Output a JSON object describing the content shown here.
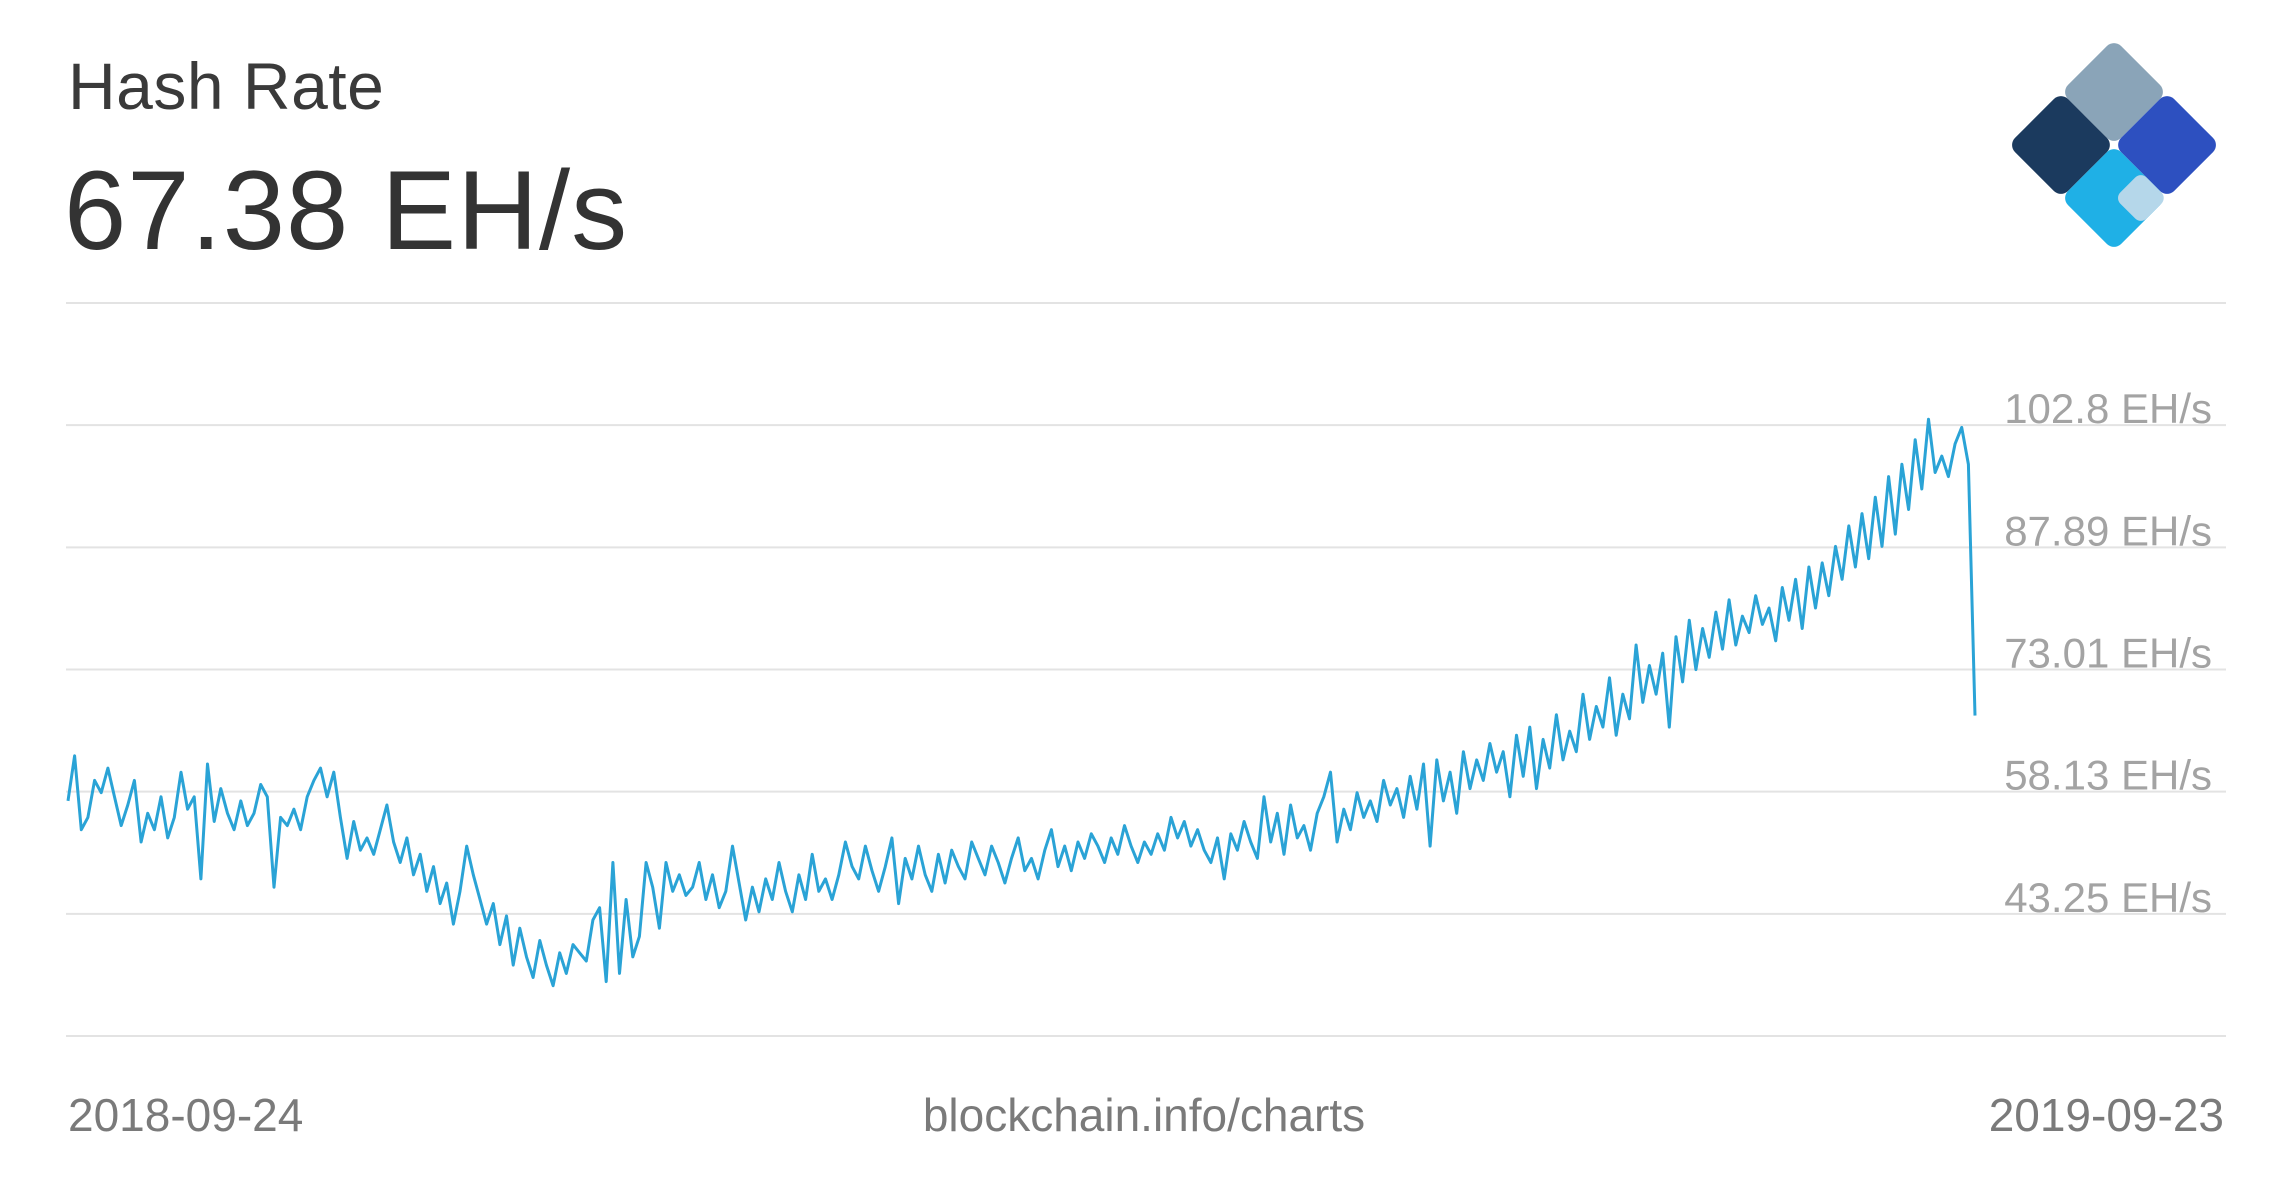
{
  "header": {
    "title": "Hash Rate",
    "current_value": "67.38 EH/s"
  },
  "footer": {
    "start_date": "2018-09-24",
    "source": "blockchain.info/charts",
    "end_date": "2019-09-23"
  },
  "logo": {
    "icon": "blockchain-diamond-icon",
    "colors": [
      "#8aa4b8",
      "#1b3a5e",
      "#2d50c0",
      "#b5d7ea",
      "#1fb0e6"
    ]
  },
  "colors": {
    "line": "#2aa3d6",
    "grid": "#e3e3e3",
    "label": "#a3a3a3"
  },
  "chart_data": {
    "type": "line",
    "title": "Hash Rate",
    "x_range": [
      "2018-09-24",
      "2019-09-23"
    ],
    "y_tick_labels": [
      "102.8 EH/s",
      "87.89 EH/s",
      "73.01 EH/s",
      "58.13 EH/s",
      "43.25 EH/s"
    ],
    "y_ticks": [
      102.77,
      87.89,
      73.01,
      58.13,
      43.25
    ],
    "ylim": [
      28.37,
      117.65
    ],
    "grid": true,
    "series": [
      {
        "values": [
          57.0,
          62.5,
          53.5,
          55.0,
          59.5,
          58.0,
          61.0,
          57.5,
          54.0,
          56.5,
          59.5,
          52.0,
          55.5,
          53.5,
          57.5,
          52.5,
          55.0,
          60.5,
          56.0,
          57.5,
          47.5,
          61.5,
          54.5,
          58.5,
          55.5,
          53.5,
          57.0,
          54.0,
          55.5,
          59.0,
          57.5,
          46.5,
          55.0,
          54.0,
          56.0,
          53.5,
          57.5,
          59.5,
          61.0,
          57.5,
          60.5,
          55.0,
          50.0,
          54.5,
          51.0,
          52.5,
          50.5,
          53.5,
          56.5,
          52.0,
          49.5,
          52.5,
          48.0,
          50.5,
          46.0,
          49.0,
          44.5,
          47.0,
          42.0,
          46.0,
          51.5,
          48.0,
          45.0,
          42.0,
          44.5,
          39.5,
          43.0,
          37.0,
          41.5,
          38.0,
          35.5,
          40.0,
          37.0,
          34.5,
          38.5,
          36.0,
          39.5,
          38.5,
          37.5,
          42.5,
          44.0,
          35.0,
          49.5,
          36.0,
          45.0,
          38.0,
          40.5,
          49.5,
          46.5,
          41.5,
          49.5,
          46.0,
          48.0,
          45.5,
          46.5,
          49.5,
          45.0,
          48.0,
          44.0,
          46.0,
          51.5,
          47.0,
          42.5,
          46.5,
          43.5,
          47.5,
          45.0,
          49.5,
          46.0,
          43.5,
          48.0,
          45.0,
          50.5,
          46.0,
          47.5,
          45.0,
          48.0,
          52.0,
          49.0,
          47.5,
          51.5,
          48.5,
          46.0,
          49.0,
          52.5,
          44.5,
          50.0,
          47.5,
          51.5,
          48.0,
          46.0,
          50.5,
          47.0,
          51.0,
          49.0,
          47.5,
          52.0,
          50.0,
          48.0,
          51.5,
          49.5,
          47.0,
          50.0,
          52.5,
          48.5,
          50.0,
          47.5,
          51.0,
          53.5,
          49.0,
          51.5,
          48.5,
          52.0,
          50.0,
          53.0,
          51.5,
          49.5,
          52.5,
          50.5,
          54.0,
          51.5,
          49.5,
          52.0,
          50.5,
          53.0,
          51.0,
          55.0,
          52.5,
          54.5,
          51.5,
          53.5,
          51.0,
          49.5,
          52.5,
          47.5,
          53.0,
          51.0,
          54.5,
          52.0,
          50.0,
          57.5,
          52.0,
          55.5,
          50.5,
          56.5,
          52.5,
          54.0,
          51.0,
          55.5,
          57.5,
          60.5,
          52.0,
          56.0,
          53.5,
          58.0,
          55.0,
          57.0,
          54.5,
          59.5,
          56.5,
          58.5,
          55.0,
          60.0,
          56.0,
          61.5,
          51.5,
          62.0,
          57.0,
          60.5,
          55.5,
          63.0,
          58.5,
          62.0,
          59.5,
          64.0,
          60.5,
          63.0,
          57.5,
          65.0,
          60.0,
          66.0,
          58.5,
          64.5,
          61.0,
          67.5,
          62.0,
          65.5,
          63.0,
          70.0,
          64.5,
          68.5,
          66.0,
          72.0,
          65.0,
          70.0,
          67.0,
          76.0,
          69.0,
          73.5,
          70.0,
          75.0,
          66.0,
          77.0,
          71.5,
          79.0,
          73.0,
          78.0,
          74.5,
          80.0,
          75.5,
          81.5,
          76.0,
          79.5,
          77.5,
          82.0,
          78.5,
          80.5,
          76.5,
          83.0,
          79.0,
          84.0,
          78.0,
          85.5,
          80.5,
          86.0,
          82.0,
          88.0,
          84.0,
          90.5,
          85.5,
          92.0,
          86.5,
          94.0,
          88.0,
          96.5,
          89.5,
          98.0,
          92.5,
          101.0,
          95.0,
          103.5,
          97.0,
          99.0,
          96.5,
          100.5,
          102.5,
          98.0,
          67.4
        ]
      }
    ]
  }
}
